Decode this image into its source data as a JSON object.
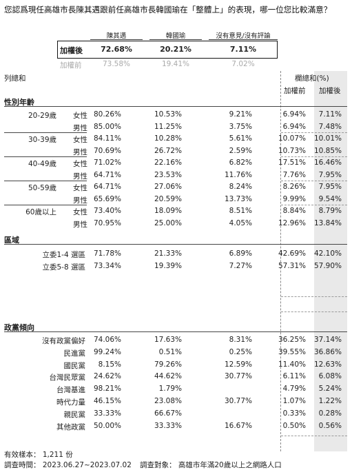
{
  "question": "您認爲現任高雄市長陳其邁跟前任高雄市長韓國瑜在「整體上」的表現，哪一位您比較滿意？",
  "columns": [
    "陳其邁",
    "韓國瑜",
    "沒有意見/沒有評論"
  ],
  "weighted": {
    "label": "加權後",
    "values": [
      "72.68%",
      "20.21%",
      "7.11%"
    ]
  },
  "unweighted": {
    "label": "加權前",
    "values": [
      "73.58%",
      "19.41%",
      "7.02%"
    ]
  },
  "left_header": "列總和",
  "right_header": {
    "title": "欄總和(%)",
    "before": "加權前",
    "after": "加權後"
  },
  "sections": {
    "age": {
      "title": "性別年齡",
      "groups": [
        {
          "label": "20-29歲",
          "rows": [
            {
              "sub": "女性",
              "v": [
                "80.26%",
                "10.53%",
                "9.21%"
              ],
              "before": "6.94%",
              "after": "7.11%"
            },
            {
              "sub": "男性",
              "v": [
                "85.00%",
                "11.25%",
                "3.75%"
              ],
              "before": "6.94%",
              "after": "7.48%"
            }
          ]
        },
        {
          "label": "30-39歲",
          "rows": [
            {
              "sub": "女性",
              "v": [
                "84.11%",
                "10.28%",
                "5.61%"
              ],
              "before": "10.07%",
              "after": "10.01%"
            },
            {
              "sub": "男性",
              "v": [
                "70.69%",
                "26.72%",
                "2.59%"
              ],
              "before": "10.73%",
              "after": "10.85%"
            }
          ]
        },
        {
          "label": "40-49歲",
          "rows": [
            {
              "sub": "女性",
              "v": [
                "71.02%",
                "22.16%",
                "6.82%"
              ],
              "before": "17.51%",
              "after": "16.46%"
            },
            {
              "sub": "男性",
              "v": [
                "64.71%",
                "23.53%",
                "11.76%"
              ],
              "before": "7.76%",
              "after": "7.95%"
            }
          ]
        },
        {
          "label": "50-59歲",
          "rows": [
            {
              "sub": "女性",
              "v": [
                "64.71%",
                "27.06%",
                "8.24%"
              ],
              "before": "8.26%",
              "after": "7.95%"
            },
            {
              "sub": "男性",
              "v": [
                "65.69%",
                "20.59%",
                "13.73%"
              ],
              "before": "9.99%",
              "after": "9.54%"
            }
          ]
        },
        {
          "label": "60歲以上",
          "rows": [
            {
              "sub": "女性",
              "v": [
                "73.40%",
                "18.09%",
                "8.51%"
              ],
              "before": "8.84%",
              "after": "8.79%"
            },
            {
              "sub": "男性",
              "v": [
                "70.95%",
                "25.00%",
                "4.05%"
              ],
              "before": "12.96%",
              "after": "13.84%"
            }
          ]
        }
      ]
    },
    "region": {
      "title": "區域",
      "rows": [
        {
          "label": "立委1-4 選區",
          "v": [
            "71.78%",
            "21.33%",
            "6.89%"
          ],
          "before": "42.69%",
          "after": "42.10%"
        },
        {
          "label": "立委5-8 選區",
          "v": [
            "73.34%",
            "19.39%",
            "7.27%"
          ],
          "before": "57.31%",
          "after": "57.90%"
        }
      ]
    },
    "party": {
      "title": "政黨傾向",
      "rows": [
        {
          "label": "沒有政黨偏好",
          "v": [
            "74.06%",
            "17.63%",
            "8.31%"
          ],
          "before": "36.25%",
          "after": "37.14%"
        },
        {
          "label": "民進黨",
          "v": [
            "99.24%",
            "0.51%",
            "0.25%"
          ],
          "before": "39.55%",
          "after": "36.86%"
        },
        {
          "label": "國民黨",
          "v": [
            "8.15%",
            "79.26%",
            "12.59%"
          ],
          "before": "11.40%",
          "after": "12.63%"
        },
        {
          "label": "台灣民眾黨",
          "v": [
            "24.62%",
            "44.62%",
            "30.77%"
          ],
          "before": "6.11%",
          "after": "6.08%"
        },
        {
          "label": "台灣基進",
          "v": [
            "98.21%",
            "1.79%",
            ""
          ],
          "before": "4.79%",
          "after": "5.24%"
        },
        {
          "label": "時代力量",
          "v": [
            "46.15%",
            "23.08%",
            "30.77%"
          ],
          "before": "1.07%",
          "after": "1.22%"
        },
        {
          "label": "親民黨",
          "v": [
            "33.33%",
            "66.67%",
            ""
          ],
          "before": "0.33%",
          "after": "0.28%"
        },
        {
          "label": "其他政黨",
          "v": [
            "50.00%",
            "33.33%",
            "16.67%"
          ],
          "before": "0.50%",
          "after": "0.56%"
        }
      ]
    }
  },
  "footer": {
    "sample": "有效樣本： 1,211 份",
    "period": "調查時間： 2023.06.27~2023.07.02",
    "target": "調查對象： 高雄市年滿20歲以上之網路人口"
  }
}
